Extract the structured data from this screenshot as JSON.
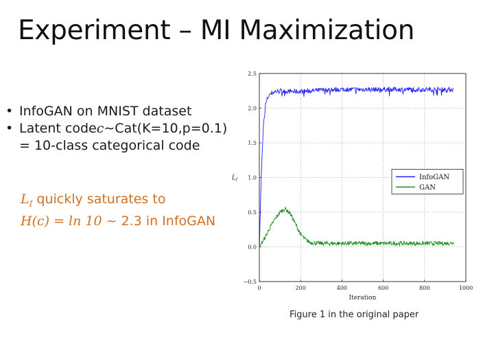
{
  "slide": {
    "title": "Experiment – MI Maximization",
    "bullets": [
      {
        "symbol": "•",
        "text": "InfoGAN on MNIST dataset"
      },
      {
        "symbol": "•",
        "prefix": "Latent code ",
        "math": "c",
        "suffix": "∼Cat(K=10,p=0.1)"
      }
    ],
    "bullet_continuation": "= 10-class categorical code",
    "note": {
      "line1_math": "L",
      "line1_sub": "I",
      "line1_text": " quickly saturates to",
      "line2_math": "H(c) = ln 10",
      "line2_text": " ~ 2.3 in InfoGAN",
      "color": "#d07020"
    },
    "caption": "Figure 1 in the original paper"
  },
  "chart_data": {
    "type": "line",
    "xlabel": "Iteration",
    "ylabel": "L",
    "ylabel_sub": "I",
    "xlim": [
      0,
      1000
    ],
    "ylim": [
      -0.5,
      2.5
    ],
    "xticks": [
      0,
      200,
      400,
      600,
      800,
      1000
    ],
    "yticks": [
      -0.5,
      0.0,
      0.5,
      1.0,
      1.5,
      2.0,
      2.5
    ],
    "ytick_labels": [
      "−0.5",
      "0.0",
      "0.5",
      "1.0",
      "1.5",
      "2.0",
      "2.5"
    ],
    "grid": true,
    "legend_position": "center-right",
    "series": [
      {
        "name": "InfoGAN",
        "color": "#1f1fff",
        "x": [
          0,
          10,
          20,
          30,
          40,
          50,
          60,
          80,
          100,
          150,
          200,
          300,
          400,
          500,
          600,
          700,
          800,
          900,
          940
        ],
        "y": [
          0.0,
          1.1,
          1.75,
          2.05,
          2.15,
          2.2,
          2.22,
          2.24,
          2.25,
          2.24,
          2.24,
          2.26,
          2.27,
          2.27,
          2.27,
          2.27,
          2.27,
          2.27,
          2.27
        ]
      },
      {
        "name": "GAN",
        "color": "#1a8c1a",
        "x": [
          0,
          25,
          50,
          75,
          100,
          125,
          150,
          175,
          200,
          225,
          250,
          300,
          400,
          500,
          600,
          700,
          800,
          900,
          940
        ],
        "y": [
          0.0,
          0.12,
          0.27,
          0.4,
          0.5,
          0.55,
          0.48,
          0.33,
          0.18,
          0.1,
          0.06,
          0.05,
          0.05,
          0.05,
          0.05,
          0.05,
          0.05,
          0.05,
          0.06
        ]
      }
    ]
  }
}
